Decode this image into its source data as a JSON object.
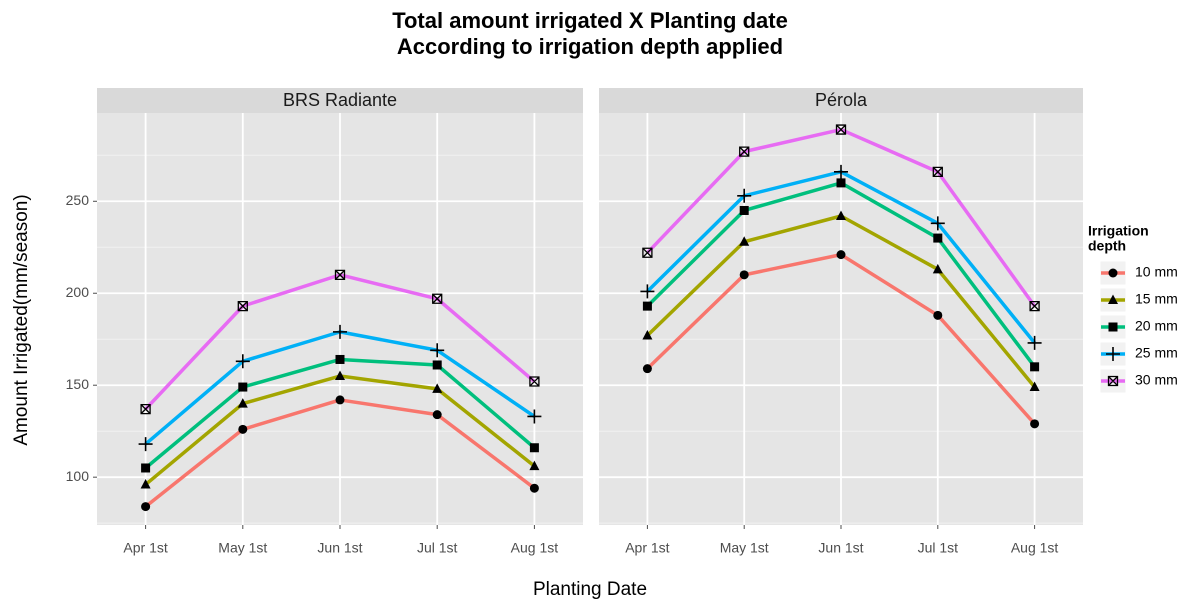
{
  "chart_data": {
    "type": "line",
    "title": [
      "Total amount irrigated X Planting date",
      "According to irrigation depth applied"
    ],
    "x_label": "Planting Date",
    "y_label": "Amount Irrigated(mm/season)",
    "facets": [
      "BRS Radiante",
      "Pérola"
    ],
    "categories": [
      "Apr 1st",
      "May 1st",
      "Jun 1st",
      "Jul 1st",
      "Aug 1st"
    ],
    "ylim": [
      74,
      298
    ],
    "yticks": [
      100,
      150,
      200,
      250
    ],
    "grid": true,
    "legend_title": [
      "Irrigation",
      "depth"
    ],
    "legend_position": "right",
    "series": [
      {
        "name": "10 mm",
        "color": "#F8766D",
        "marker": "circle",
        "values": [
          [
            84,
            126,
            142,
            134,
            94
          ],
          [
            159,
            210,
            221,
            188,
            129
          ]
        ]
      },
      {
        "name": "15 mm",
        "color": "#A3A500",
        "marker": "triangle",
        "values": [
          [
            96,
            140,
            155,
            148,
            106
          ],
          [
            177,
            228,
            242,
            213,
            149
          ]
        ]
      },
      {
        "name": "20 mm",
        "color": "#00BF7D",
        "marker": "square",
        "values": [
          [
            105,
            149,
            164,
            161,
            116
          ],
          [
            193,
            245,
            260,
            230,
            160
          ]
        ]
      },
      {
        "name": "25 mm",
        "color": "#00B0F6",
        "marker": "plus",
        "values": [
          [
            118,
            163,
            179,
            169,
            133
          ],
          [
            201,
            253,
            266,
            238,
            173
          ]
        ]
      },
      {
        "name": "30 mm",
        "color": "#E76BF3",
        "marker": "square-x",
        "values": [
          [
            137,
            193,
            210,
            197,
            152
          ],
          [
            222,
            277,
            289,
            266,
            193
          ]
        ]
      }
    ]
  }
}
